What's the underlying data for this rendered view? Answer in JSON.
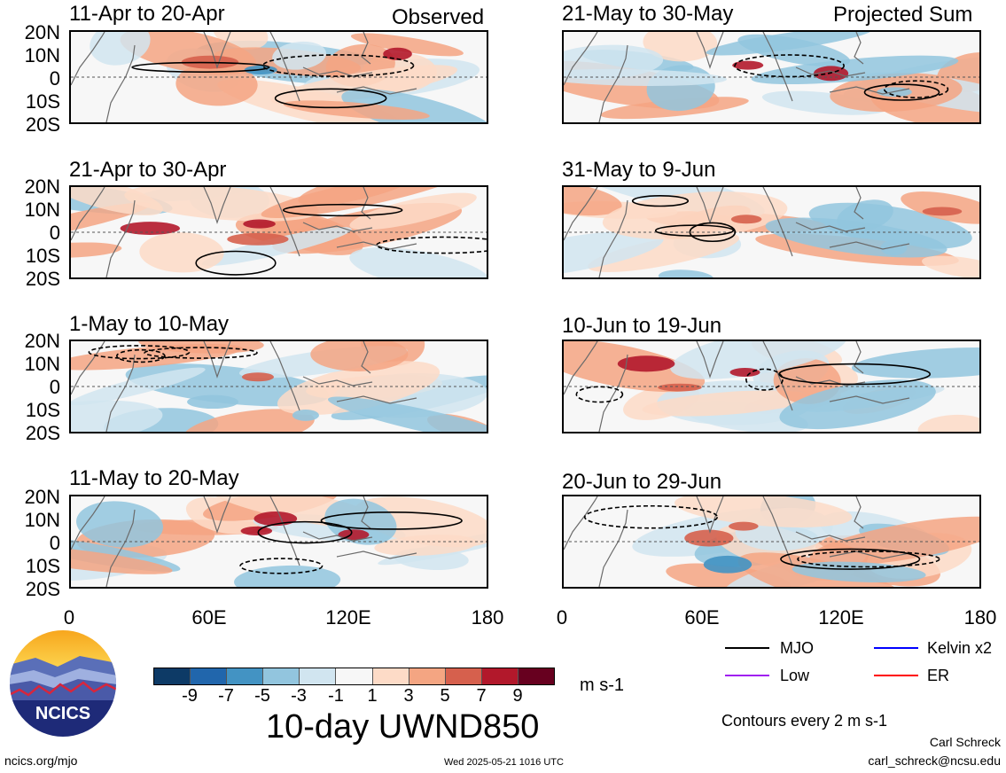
{
  "headers": {
    "left": "Observed",
    "right": "Projected Sum"
  },
  "chart_data": {
    "type": "heatmap",
    "variable": "10-day UWND850",
    "units": "m s-1",
    "lat_ticks": [
      "20N",
      "10N",
      "0",
      "10S",
      "20S"
    ],
    "lon_ticks": [
      "0",
      "60E",
      "120E",
      "180"
    ],
    "lat_range": [
      -20,
      20
    ],
    "lon_range": [
      0,
      180
    ],
    "colorbar": {
      "levels": [
        "-9",
        "-7",
        "-5",
        "-3",
        "-1",
        "1",
        "3",
        "5",
        "7",
        "9"
      ],
      "colors": [
        "#0d3a66",
        "#2166ac",
        "#4393c3",
        "#92c5de",
        "#d1e5f0",
        "#f7f7f7",
        "#fddbc7",
        "#f4a582",
        "#d6604d",
        "#b2182b",
        "#67001f"
      ]
    },
    "panels": [
      {
        "title": "11-Apr to 20-Apr",
        "column": "observed"
      },
      {
        "title": "21-Apr to 30-Apr",
        "column": "observed"
      },
      {
        "title": "1-May to 10-May",
        "column": "observed"
      },
      {
        "title": "11-May to 20-May",
        "column": "observed"
      },
      {
        "title": "21-May to 30-May",
        "column": "projected"
      },
      {
        "title": "31-May to 9-Jun",
        "column": "projected"
      },
      {
        "title": "10-Jun to 19-Jun",
        "column": "projected"
      },
      {
        "title": "20-Jun to 29-Jun",
        "column": "projected"
      }
    ],
    "legend": [
      {
        "name": "MJO",
        "color": "#000000"
      },
      {
        "name": "Kelvin x2",
        "color": "#0000ff"
      },
      {
        "name": "Low",
        "color": "#a020f0"
      },
      {
        "name": "ER",
        "color": "#ff0000"
      }
    ],
    "contour_note": "Contours every 2 m s-1"
  },
  "footer": {
    "logo_text": "NCICS",
    "site": "ncics.org/mjo",
    "timestamp": "Wed 2025-05-21 1016 UTC",
    "author": "Carl Schreck",
    "email": "carl_schreck@ncsu.edu"
  }
}
